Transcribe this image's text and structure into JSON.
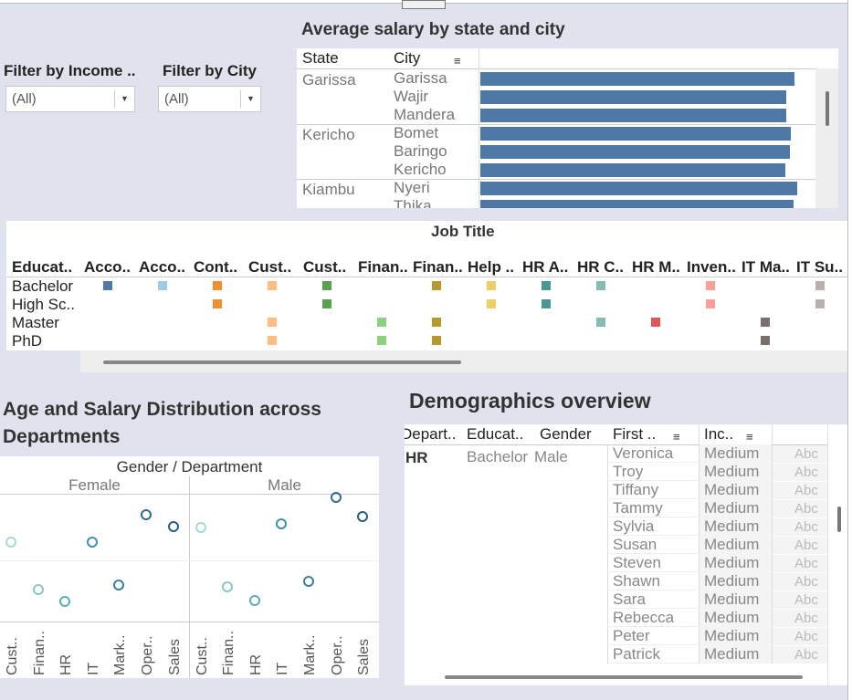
{
  "filters": {
    "income": {
      "label": "Filter by Income ..",
      "value": "(All)"
    },
    "city": {
      "label": "Filter by City",
      "value": "(All)"
    }
  },
  "salary_panel": {
    "title": "Average salary by state and city",
    "col_state": "State",
    "col_city": "City",
    "groups": [
      {
        "state": "Garissa",
        "cities": [
          "Garissa",
          "Wajir",
          "Mandera"
        ]
      },
      {
        "state": "Kericho",
        "cities": [
          "Bomet",
          "Baringo",
          "Kericho"
        ]
      },
      {
        "state": "Kiambu",
        "cities": [
          "Nyeri",
          "Thika"
        ]
      }
    ]
  },
  "job_panel": {
    "title": "Job Title",
    "row_header": "Educat..",
    "columns": [
      "Acco..",
      "Acco..",
      "Cont..",
      "Cust..",
      "Cust..",
      "Finan..",
      "Finan..",
      "Help ..",
      "HR A..",
      "HR C..",
      "HR M..",
      "Inven..",
      "IT Ma..",
      "IT Su.."
    ],
    "rows": [
      "Bachelor",
      "High Sc..",
      "Master",
      "PhD"
    ],
    "column_colors": [
      "#4e79a7",
      "#a0cbe8",
      "#f28e2b",
      "#ffbe7d",
      "#59a14f",
      "#8cd17d",
      "#b6992d",
      "#f1ce63",
      "#499894",
      "#86bcb6",
      "#e15759",
      "#ff9d9a",
      "#79706e",
      "#bab0ac"
    ],
    "cells": [
      [
        1,
        1,
        1,
        1,
        1,
        0,
        1,
        1,
        1,
        1,
        0,
        1,
        0,
        1
      ],
      [
        0,
        0,
        1,
        0,
        1,
        0,
        0,
        1,
        1,
        0,
        0,
        1,
        0,
        1
      ],
      [
        0,
        0,
        0,
        1,
        0,
        1,
        1,
        0,
        0,
        1,
        1,
        0,
        1,
        0
      ],
      [
        0,
        0,
        0,
        1,
        0,
        1,
        1,
        0,
        0,
        0,
        0,
        0,
        1,
        0
      ]
    ]
  },
  "age_panel": {
    "title_line1": "Age and Salary Distribution across",
    "title_line2": "Departments",
    "header": "Gender / Department",
    "genders": [
      "Female",
      "Male"
    ],
    "departments": [
      "Cust..",
      "Finan..",
      "HR",
      "IT",
      "Mark..",
      "Oper..",
      "Sales"
    ]
  },
  "chart_data": {
    "type": "scatter",
    "title": "Age and Salary Distribution across Departments",
    "xlabel": "Gender / Department",
    "ylabel": "",
    "categories": [
      "Cust..",
      "Finan..",
      "HR",
      "IT",
      "Mark..",
      "Oper..",
      "Sales"
    ],
    "series": [
      {
        "name": "Female",
        "values": [
          0.63,
          0.24,
          0.14,
          0.63,
          0.28,
          0.86,
          0.76
        ]
      },
      {
        "name": "Male",
        "values": [
          0.75,
          0.26,
          0.15,
          0.78,
          0.31,
          1.0,
          0.84
        ]
      }
    ],
    "colors": [
      "#a6d8d0",
      "#8cc6c9",
      "#5aaebb",
      "#3d91ab",
      "#3a7f9d",
      "#2f6d8e",
      "#285d82"
    ]
  },
  "demo_panel": {
    "title": "Demographics overview",
    "headers": [
      "Depart..",
      "Educat..",
      "Gender",
      "First ..",
      "Inc.."
    ],
    "dept": "HR",
    "education": "Bachelor",
    "gender": "Male",
    "abc": "Abc",
    "rows": [
      {
        "first": "Veronica",
        "income": "Medium"
      },
      {
        "first": "Troy",
        "income": "Medium"
      },
      {
        "first": "Tiffany",
        "income": "Medium"
      },
      {
        "first": "Tammy",
        "income": "Medium"
      },
      {
        "first": "Sylvia",
        "income": "Medium"
      },
      {
        "first": "Susan",
        "income": "Medium"
      },
      {
        "first": "Steven",
        "income": "Medium"
      },
      {
        "first": "Shawn",
        "income": "Medium"
      },
      {
        "first": "Sara",
        "income": "Medium"
      },
      {
        "first": "Rebecca",
        "income": "Medium"
      },
      {
        "first": "Peter",
        "income": "Medium"
      },
      {
        "first": "Patrick",
        "income": "Medium"
      }
    ]
  }
}
